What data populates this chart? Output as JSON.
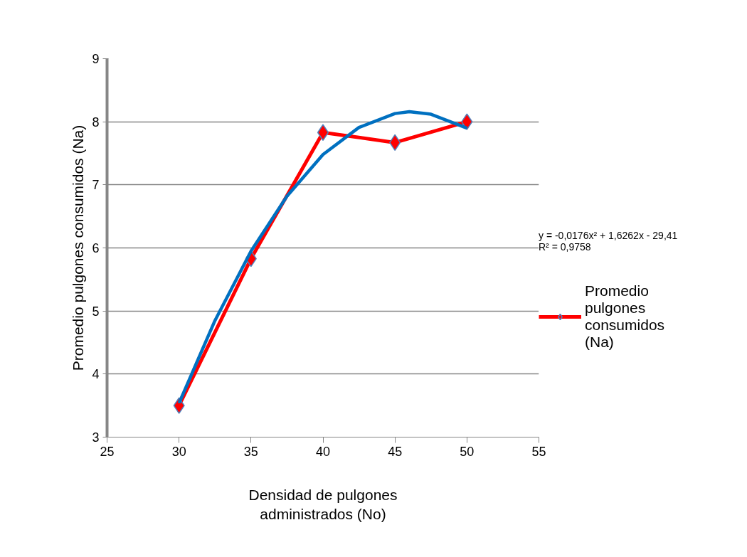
{
  "chart_data": {
    "type": "line",
    "xlabel": "Densidad de pulgones administrados (No)",
    "ylabel": "Promedio pulgones consumidos (Na)",
    "x": [
      30,
      35,
      40,
      45,
      50
    ],
    "series": [
      {
        "name": "Promedio pulgones consumidos (Na)",
        "color": "#ff0000",
        "values": [
          3.5,
          5.83,
          7.83,
          7.67,
          8.0
        ]
      },
      {
        "type": "line",
        "color": "#0070c0",
        "marker": "none",
        "x": [
          30,
          32.5,
          35,
          37.5,
          40,
          42.5,
          45,
          46,
          47.5,
          50
        ],
        "values": [
          3.54,
          4.85,
          5.95,
          6.82,
          7.48,
          7.91,
          8.13,
          8.16,
          8.12,
          7.9
        ]
      }
    ],
    "annotations": [
      "y = -0,0176x² + 1,6262x - 29,41\nR² = 0,9758"
    ],
    "xlim": [
      25,
      55
    ],
    "xticks": [
      25,
      30,
      35,
      40,
      45,
      50,
      55
    ],
    "ylim": [
      3,
      9
    ],
    "yticks": [
      3,
      4,
      5,
      6,
      7,
      8,
      9
    ],
    "grid": "y",
    "legend": "right",
    "marker": "diamond",
    "line_style": "solid"
  }
}
